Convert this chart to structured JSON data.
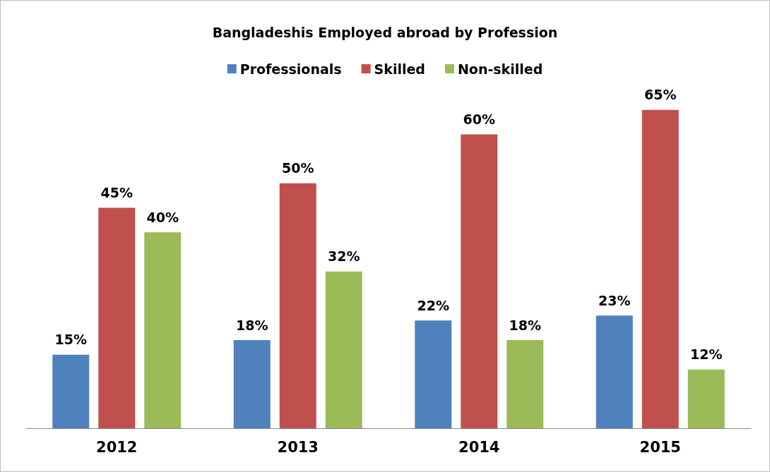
{
  "chart_data": {
    "type": "bar",
    "title": "Bangladeshis Employed abroad by Profession",
    "categories": [
      "2012",
      "2013",
      "2014",
      "2015"
    ],
    "series": [
      {
        "name": "Professionals",
        "color": "#4f81bd",
        "values": [
          15,
          18,
          22,
          23
        ],
        "value_labels": [
          "15%",
          "18%",
          "22%",
          "23%"
        ]
      },
      {
        "name": "Skilled",
        "color": "#c0504d",
        "values": [
          45,
          50,
          60,
          65
        ],
        "value_labels": [
          "45%",
          "50%",
          "60%",
          "65%"
        ]
      },
      {
        "name": "Non-skilled",
        "color": "#9bbb59",
        "values": [
          40,
          32,
          18,
          12
        ],
        "value_labels": [
          "40%",
          "32%",
          "18%",
          "12%"
        ]
      }
    ],
    "legend": "top",
    "grid": false
  }
}
